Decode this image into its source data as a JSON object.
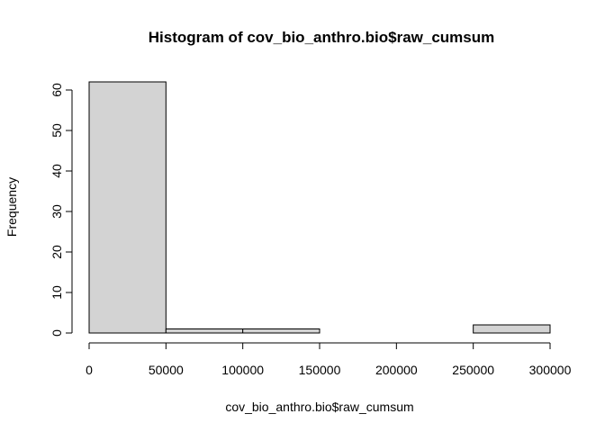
{
  "chart_data": {
    "type": "bar",
    "title": "Histogram of cov_bio_anthro.bio$raw_cumsum",
    "xlabel": "cov_bio_anthro.bio$raw_cumsum",
    "ylabel": "Frequency",
    "bins": [
      {
        "start": 0,
        "end": 50000,
        "count": 62
      },
      {
        "start": 50000,
        "end": 100000,
        "count": 1
      },
      {
        "start": 100000,
        "end": 150000,
        "count": 1
      },
      {
        "start": 150000,
        "end": 200000,
        "count": 0
      },
      {
        "start": 200000,
        "end": 250000,
        "count": 0
      },
      {
        "start": 250000,
        "end": 300000,
        "count": 2
      }
    ],
    "xlim": [
      0,
      300000
    ],
    "ylim": [
      0,
      62
    ],
    "x_ticks": [
      0,
      50000,
      100000,
      150000,
      200000,
      250000,
      300000
    ],
    "x_tick_labels": [
      "0",
      "50000",
      "100000",
      "150000",
      "200000",
      "250000",
      "300000"
    ],
    "y_ticks": [
      0,
      10,
      20,
      30,
      40,
      50,
      60
    ],
    "y_tick_labels": [
      "0",
      "10",
      "20",
      "30",
      "40",
      "50",
      "60"
    ],
    "bar_color": "#d3d3d3",
    "grid": false,
    "legend": "none"
  }
}
